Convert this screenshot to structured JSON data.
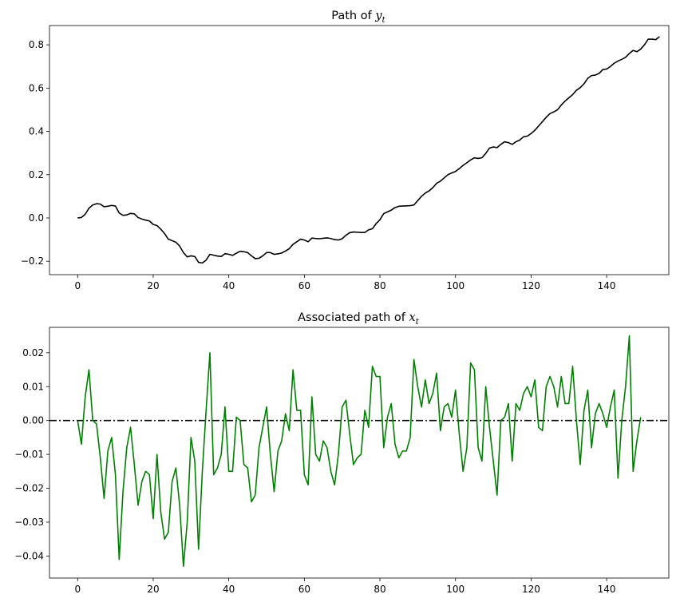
{
  "chart_data": [
    {
      "type": "line",
      "title": "Path of ",
      "title_math": "y",
      "title_sub": "t",
      "xlim": [
        -7.45,
        156.45
      ],
      "ylim": [
        -0.262,
        0.889
      ],
      "xticks": [
        0,
        20,
        40,
        60,
        80,
        100,
        120,
        140
      ],
      "yticks": [
        -0.2,
        0.0,
        0.2,
        0.4,
        0.6,
        0.8
      ],
      "ytick_labels": [
        "−0.2",
        "0.0",
        "0.2",
        "0.4",
        "0.6",
        "0.8"
      ],
      "series": [
        {
          "color": "#000000",
          "values": [
            0.0,
            0.002,
            0.017,
            0.045,
            0.06,
            0.066,
            0.064,
            0.052,
            0.054,
            0.058,
            0.055,
            0.023,
            0.012,
            0.014,
            0.021,
            0.019,
            0.002,
            -0.005,
            -0.01,
            -0.014,
            -0.03,
            -0.035,
            -0.052,
            -0.072,
            -0.098,
            -0.105,
            -0.112,
            -0.13,
            -0.16,
            -0.18,
            -0.175,
            -0.178,
            -0.205,
            -0.208,
            -0.195,
            -0.168,
            -0.172,
            -0.176,
            -0.178,
            -0.165,
            -0.168,
            -0.173,
            -0.163,
            -0.154,
            -0.156,
            -0.16,
            -0.175,
            -0.188,
            -0.186,
            -0.175,
            -0.16,
            -0.16,
            -0.168,
            -0.166,
            -0.162,
            -0.153,
            -0.142,
            -0.122,
            -0.11,
            -0.098,
            -0.102,
            -0.11,
            -0.093,
            -0.095,
            -0.096,
            -0.094,
            -0.092,
            -0.095,
            -0.1,
            -0.102,
            -0.096,
            -0.08,
            -0.068,
            -0.065,
            -0.066,
            -0.067,
            -0.067,
            -0.055,
            -0.05,
            -0.026,
            -0.008,
            0.02,
            0.028,
            0.036,
            0.048,
            0.054,
            0.055,
            0.056,
            0.057,
            0.06,
            0.08,
            0.1,
            0.115,
            0.125,
            0.14,
            0.16,
            0.17,
            0.185,
            0.2,
            0.208,
            0.215,
            0.228,
            0.243,
            0.255,
            0.268,
            0.278,
            0.275,
            0.278,
            0.298,
            0.323,
            0.328,
            0.325,
            0.34,
            0.352,
            0.348,
            0.34,
            0.352,
            0.36,
            0.375,
            0.378,
            0.39,
            0.405,
            0.425,
            0.445,
            0.465,
            0.482,
            0.49,
            0.5,
            0.522,
            0.54,
            0.555,
            0.57,
            0.59,
            0.602,
            0.62,
            0.645,
            0.658,
            0.66,
            0.668,
            0.686,
            0.688,
            0.7,
            0.715,
            0.725,
            0.733,
            0.742,
            0.76,
            0.774,
            0.768,
            0.78,
            0.8,
            0.826,
            0.826,
            0.824,
            0.838
          ]
        }
      ]
    },
    {
      "type": "line",
      "title": "Associated path of ",
      "title_math": "x",
      "title_sub": "t",
      "xlim": [
        -7.45,
        156.45
      ],
      "ylim": [
        -0.0465,
        0.0275
      ],
      "xticks": [
        0,
        20,
        40,
        60,
        80,
        100,
        120,
        140
      ],
      "yticks": [
        -0.04,
        -0.03,
        -0.02,
        -0.01,
        0.0,
        0.01,
        0.02
      ],
      "ytick_labels": [
        "−0.04",
        "−0.03",
        "−0.02",
        "−0.01",
        "0.00",
        "0.01",
        "0.02"
      ],
      "reference_line": {
        "y": 0.0,
        "color": "#000000",
        "style": "dashdot"
      },
      "series": [
        {
          "color": "#008000",
          "values": [
            0.0,
            -0.007,
            0.007,
            0.015,
            0.0,
            -0.001,
            -0.011,
            -0.023,
            -0.009,
            -0.005,
            -0.016,
            -0.041,
            -0.021,
            -0.008,
            -0.002,
            -0.013,
            -0.025,
            -0.018,
            -0.015,
            -0.016,
            -0.029,
            -0.01,
            -0.027,
            -0.035,
            -0.033,
            -0.018,
            -0.014,
            -0.025,
            -0.043,
            -0.03,
            -0.005,
            -0.012,
            -0.038,
            -0.015,
            0.003,
            0.02,
            -0.016,
            -0.014,
            -0.01,
            0.004,
            -0.015,
            -0.015,
            0.001,
            0.0,
            -0.013,
            -0.014,
            -0.024,
            -0.022,
            -0.008,
            -0.002,
            0.004,
            -0.01,
            -0.021,
            -0.009,
            -0.006,
            0.002,
            -0.003,
            0.015,
            0.003,
            0.003,
            -0.016,
            -0.019,
            0.007,
            -0.01,
            -0.012,
            -0.006,
            -0.008,
            -0.015,
            -0.019,
            -0.01,
            0.004,
            0.006,
            -0.004,
            -0.013,
            -0.011,
            -0.01,
            0.003,
            -0.002,
            0.016,
            0.013,
            0.013,
            -0.008,
            0.001,
            0.005,
            -0.007,
            -0.011,
            -0.009,
            -0.009,
            -0.005,
            0.018,
            0.01,
            0.004,
            0.012,
            0.005,
            0.008,
            0.014,
            -0.003,
            0.004,
            0.005,
            0.001,
            0.009,
            -0.004,
            -0.015,
            -0.008,
            0.017,
            0.015,
            -0.008,
            -0.012,
            0.01,
            -0.002,
            -0.012,
            -0.022,
            0.0,
            0.001,
            0.005,
            -0.012,
            0.005,
            0.003,
            0.008,
            0.01,
            0.007,
            0.012,
            -0.002,
            -0.003,
            0.01,
            0.013,
            0.01,
            0.004,
            0.013,
            0.005,
            0.005,
            0.016,
            0.0,
            -0.013,
            0.003,
            0.009,
            -0.008,
            0.002,
            0.005,
            0.002,
            -0.002,
            0.004,
            0.009,
            -0.017,
            0.0,
            0.01,
            0.025,
            -0.015,
            -0.006,
            0.001
          ]
        }
      ]
    }
  ]
}
